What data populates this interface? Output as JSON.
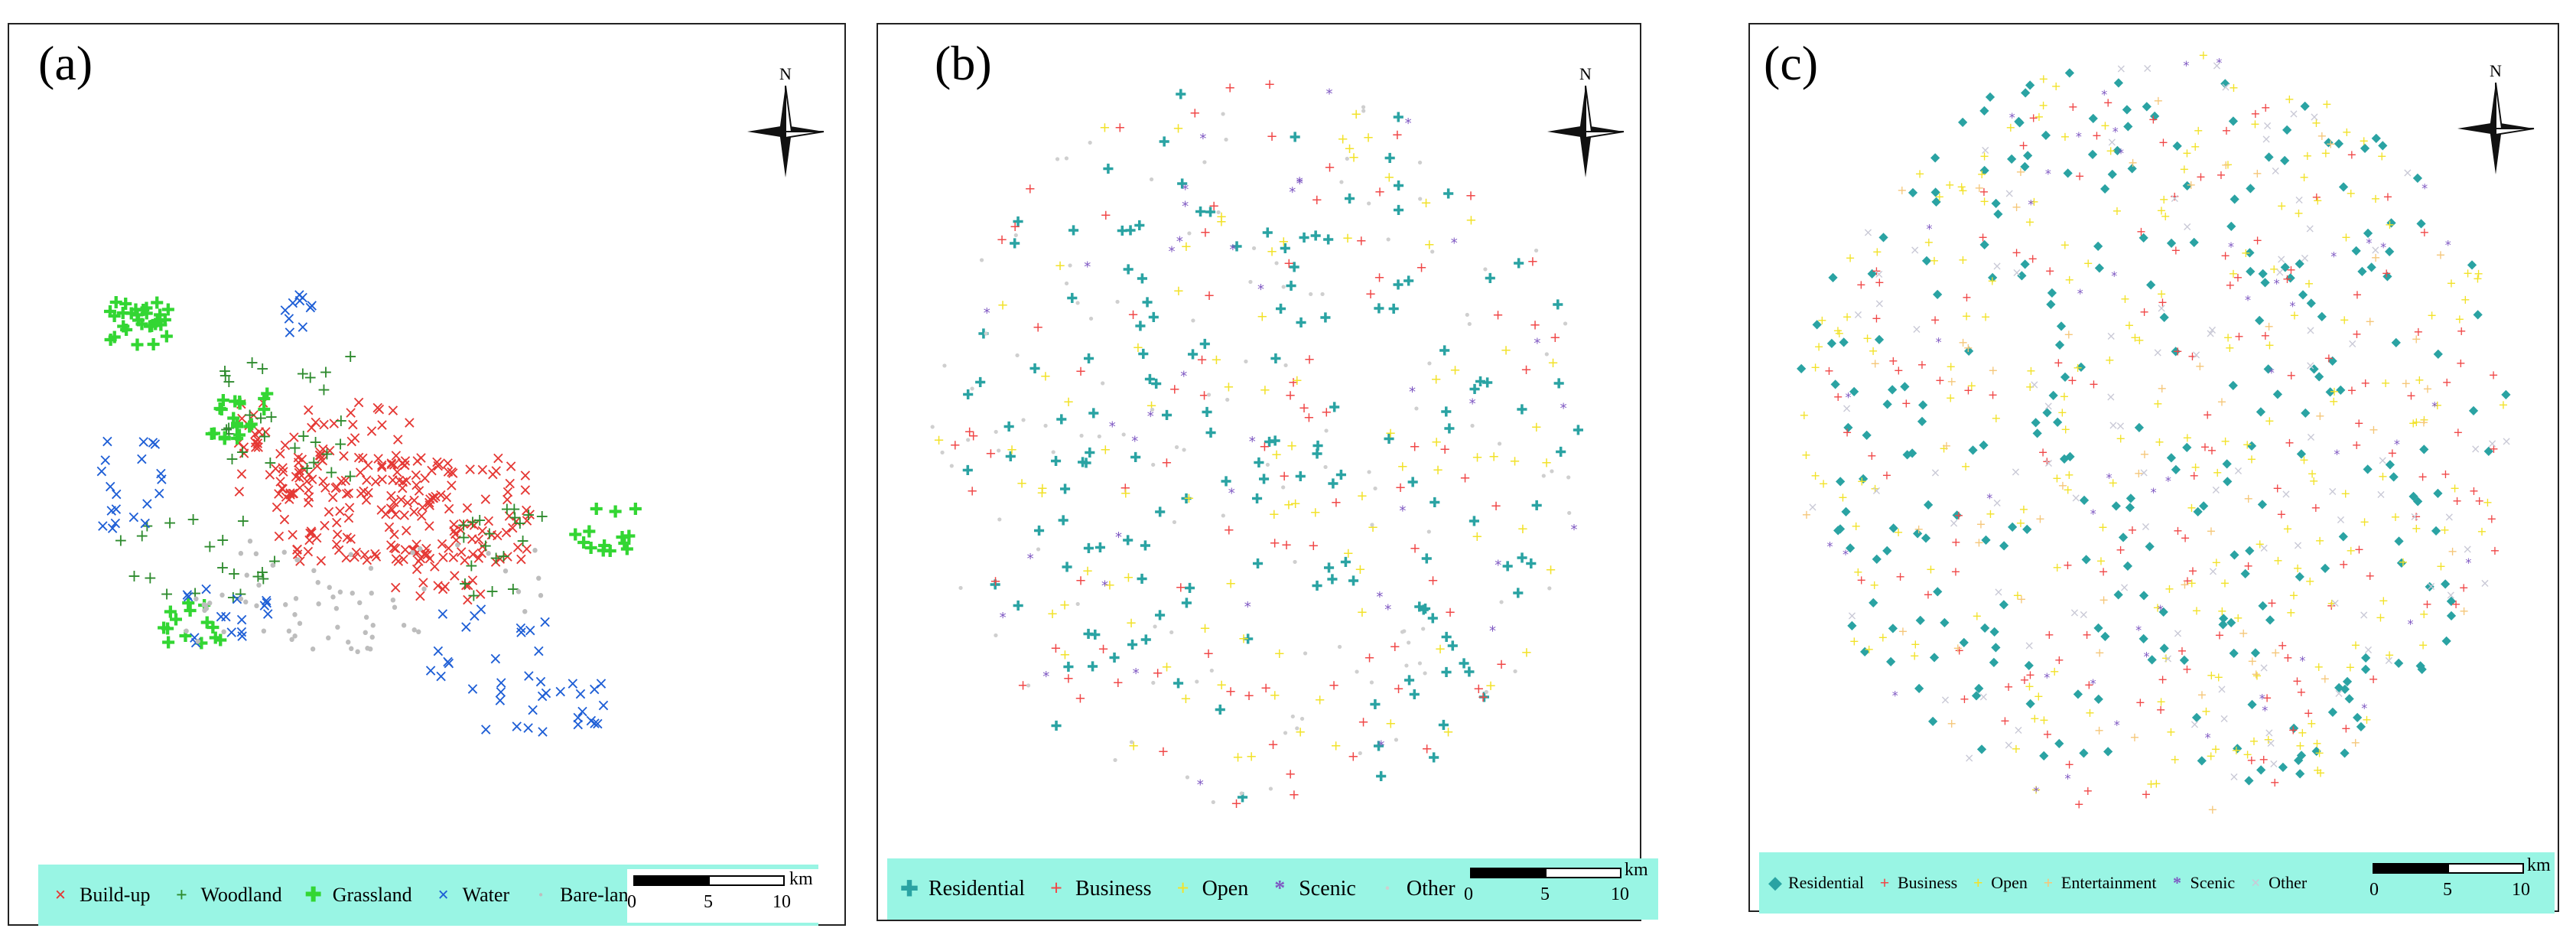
{
  "panels": [
    {
      "label": "(a)",
      "legend": [
        {
          "symbol": "×",
          "label": "Build-up",
          "color": "#e53935"
        },
        {
          "symbol": "+",
          "label": "Woodland",
          "color": "#2e8b2e"
        },
        {
          "symbol": "✚",
          "label": "Grassland",
          "color": "#33d633"
        },
        {
          "symbol": "×",
          "label": "Water",
          "color": "#1f5fd6"
        },
        {
          "symbol": "·",
          "label": "Bare-land",
          "color": "#bdbdbd"
        }
      ],
      "scale": {
        "unit": "km",
        "ticks": [
          "0",
          "5",
          "10"
        ]
      },
      "north": "N"
    },
    {
      "label": "(b)",
      "legend": [
        {
          "symbol": "✚",
          "label": "Residential",
          "color": "#2aa3a3"
        },
        {
          "symbol": "+",
          "label": "Business",
          "color": "#f04848"
        },
        {
          "symbol": "+",
          "label": "Open",
          "color": "#f2e22a"
        },
        {
          "symbol": "*",
          "label": "Scenic",
          "color": "#7e57c2"
        },
        {
          "symbol": "·",
          "label": "Other",
          "color": "#cfcfcf"
        }
      ],
      "scale": {
        "unit": "km",
        "ticks": [
          "0",
          "5",
          "10"
        ]
      },
      "north": "N"
    },
    {
      "label": "(c)",
      "legend": [
        {
          "symbol": "◆",
          "label": "Residential",
          "color": "#2aa3a3"
        },
        {
          "symbol": "+",
          "label": "Business",
          "color": "#f04848"
        },
        {
          "symbol": "+",
          "label": "Open",
          "color": "#f2e22a"
        },
        {
          "symbol": "+",
          "label": "Entertainment",
          "color": "#f5c77a"
        },
        {
          "symbol": "*",
          "label": "Scenic",
          "color": "#7e57c2"
        },
        {
          "symbol": "×",
          "label": "Other",
          "color": "#c9c9d6"
        }
      ],
      "scale": {
        "unit": "km",
        "ticks": [
          "0",
          "5",
          "10"
        ]
      },
      "north": "N"
    }
  ]
}
